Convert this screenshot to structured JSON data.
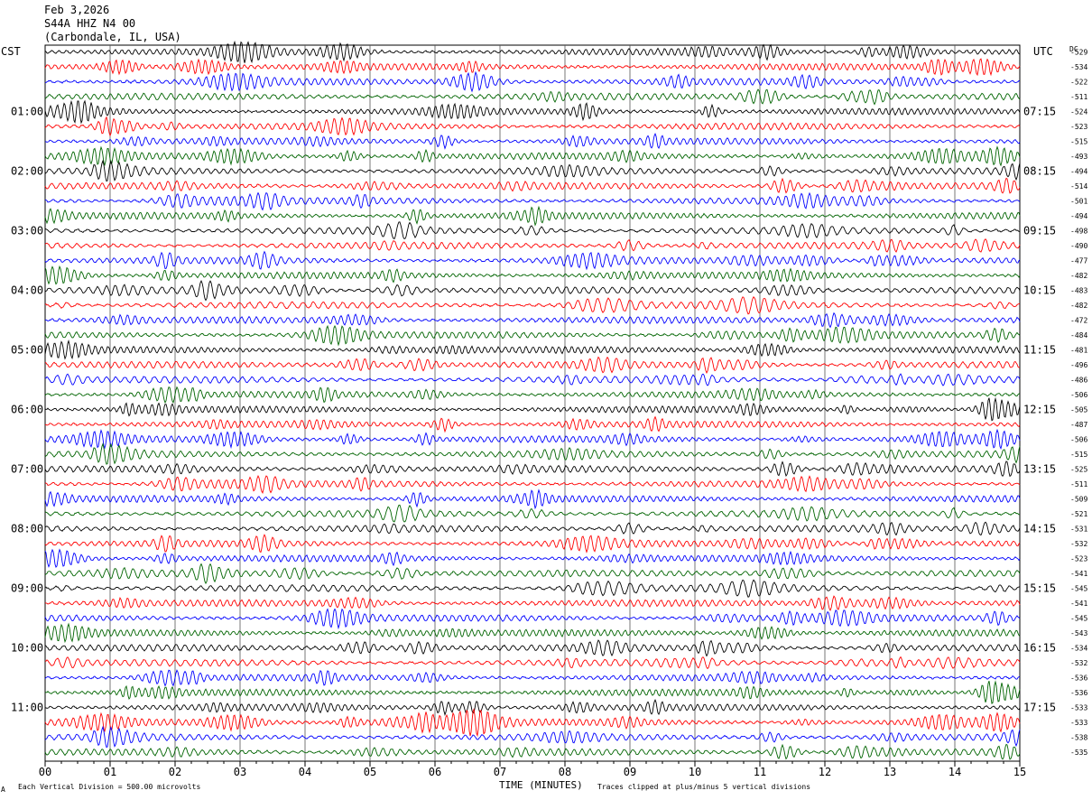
{
  "header": {
    "date": "Feb 3,2026",
    "station": "S44A HHZ N4 00",
    "location": "(Carbondale, IL, USA)"
  },
  "timezones": {
    "left": "CST",
    "right": "UTC"
  },
  "dc_label": "DC",
  "footer": {
    "scale": "Each Vertical Division =  500.00 microvolts",
    "xlabel": "TIME (MINUTES)",
    "clip_note": "Traces clipped at plus/minus 5 vertical divisions",
    "corner_mark": "A"
  },
  "colors": {
    "black": "#000000",
    "red": "#ff0000",
    "blue": "#0000ff",
    "green": "#006400",
    "grid": "#555555"
  },
  "chart_data": {
    "type": "line",
    "title": "S44A HHZ N4 00",
    "xlabel": "TIME (MINUTES)",
    "ylabel": "",
    "xlim": [
      0,
      15
    ],
    "x_ticks": [
      "00",
      "01",
      "02",
      "03",
      "04",
      "05",
      "06",
      "07",
      "08",
      "09",
      "10",
      "11",
      "12",
      "13",
      "14",
      "15"
    ],
    "left_time_labels": [
      {
        "trace": 4,
        "label": "01:00"
      },
      {
        "trace": 8,
        "label": "02:00"
      },
      {
        "trace": 12,
        "label": "03:00"
      },
      {
        "trace": 16,
        "label": "04:00"
      },
      {
        "trace": 20,
        "label": "05:00"
      },
      {
        "trace": 24,
        "label": "06:00"
      },
      {
        "trace": 28,
        "label": "07:00"
      },
      {
        "trace": 32,
        "label": "08:00"
      },
      {
        "trace": 36,
        "label": "09:00"
      },
      {
        "trace": 40,
        "label": "10:00"
      },
      {
        "trace": 44,
        "label": "11:00"
      }
    ],
    "right_time_labels": [
      {
        "trace": 4,
        "label": "07:15"
      },
      {
        "trace": 8,
        "label": "08:15"
      },
      {
        "trace": 12,
        "label": "09:15"
      },
      {
        "trace": 16,
        "label": "10:15"
      },
      {
        "trace": 20,
        "label": "11:15"
      },
      {
        "trace": 24,
        "label": "12:15"
      },
      {
        "trace": 28,
        "label": "13:15"
      },
      {
        "trace": 32,
        "label": "14:15"
      },
      {
        "trace": 36,
        "label": "15:15"
      },
      {
        "trace": 40,
        "label": "16:15"
      },
      {
        "trace": 44,
        "label": "17:15"
      }
    ],
    "trace_colors": [
      "black",
      "red",
      "blue",
      "green"
    ],
    "dc_offsets": [
      "-529",
      "-534",
      "-522",
      "-511",
      "-524",
      "-523",
      "-515",
      "-493",
      "-494",
      "-514",
      "-501",
      "-494",
      "-498",
      "-490",
      "-477",
      "-482",
      "-483",
      "-482",
      "-472",
      "-484",
      "-481",
      "-496",
      "-486",
      "-506",
      "-505",
      "-487",
      "-506",
      "-515",
      "-525",
      "-511",
      "-509",
      "-521",
      "-531",
      "-532",
      "-523",
      "-541",
      "-545",
      "-541",
      "-545",
      "-543",
      "-534",
      "-532",
      "-536",
      "-536",
      "-533",
      "-533",
      "-538",
      "-535"
    ]
  }
}
